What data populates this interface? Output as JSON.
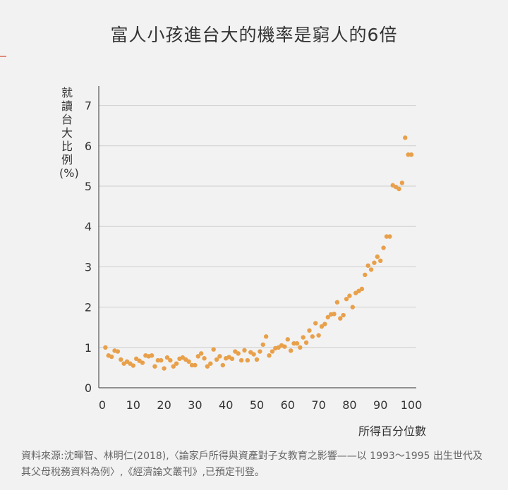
{
  "chart_data": {
    "type": "scatter",
    "title": "富人小孩進台大的機率是窮人的6倍",
    "xlabel": "所得百分位數",
    "ylabel": "就讀台大比例(%)",
    "xlim": [
      0,
      100
    ],
    "ylim": [
      0,
      7.5
    ],
    "xticks": [
      0,
      10,
      20,
      30,
      40,
      50,
      60,
      70,
      80,
      90,
      100
    ],
    "yticks": [
      0,
      1,
      2,
      3,
      4,
      5,
      6,
      7
    ],
    "grid": "horizontal",
    "color": "#e8a04a",
    "points": [
      [
        1,
        1.0
      ],
      [
        2,
        0.8
      ],
      [
        3,
        0.77
      ],
      [
        4,
        0.92
      ],
      [
        5,
        0.9
      ],
      [
        6,
        0.7
      ],
      [
        7,
        0.6
      ],
      [
        8,
        0.65
      ],
      [
        9,
        0.6
      ],
      [
        10,
        0.55
      ],
      [
        11,
        0.72
      ],
      [
        12,
        0.67
      ],
      [
        13,
        0.62
      ],
      [
        14,
        0.8
      ],
      [
        15,
        0.78
      ],
      [
        16,
        0.8
      ],
      [
        17,
        0.53
      ],
      [
        18,
        0.68
      ],
      [
        19,
        0.68
      ],
      [
        20,
        0.48
      ],
      [
        21,
        0.75
      ],
      [
        22,
        0.68
      ],
      [
        23,
        0.53
      ],
      [
        24,
        0.6
      ],
      [
        25,
        0.72
      ],
      [
        26,
        0.75
      ],
      [
        27,
        0.7
      ],
      [
        28,
        0.65
      ],
      [
        29,
        0.56
      ],
      [
        30,
        0.56
      ],
      [
        31,
        0.78
      ],
      [
        32,
        0.85
      ],
      [
        33,
        0.73
      ],
      [
        34,
        0.53
      ],
      [
        35,
        0.6
      ],
      [
        36,
        0.95
      ],
      [
        37,
        0.7
      ],
      [
        38,
        0.78
      ],
      [
        39,
        0.56
      ],
      [
        40,
        0.73
      ],
      [
        41,
        0.76
      ],
      [
        42,
        0.72
      ],
      [
        43,
        0.9
      ],
      [
        44,
        0.85
      ],
      [
        45,
        0.68
      ],
      [
        46,
        0.93
      ],
      [
        47,
        0.68
      ],
      [
        48,
        0.88
      ],
      [
        49,
        0.83
      ],
      [
        50,
        0.7
      ],
      [
        51,
        0.9
      ],
      [
        52,
        1.07
      ],
      [
        53,
        1.27
      ],
      [
        54,
        0.8
      ],
      [
        55,
        0.9
      ],
      [
        56,
        0.98
      ],
      [
        57,
        1.0
      ],
      [
        58,
        1.05
      ],
      [
        59,
        1.02
      ],
      [
        60,
        1.2
      ],
      [
        61,
        0.92
      ],
      [
        62,
        1.1
      ],
      [
        63,
        1.1
      ],
      [
        64,
        1.0
      ],
      [
        65,
        1.25
      ],
      [
        66,
        1.12
      ],
      [
        67,
        1.42
      ],
      [
        68,
        1.27
      ],
      [
        69,
        1.6
      ],
      [
        70,
        1.3
      ],
      [
        71,
        1.52
      ],
      [
        72,
        1.58
      ],
      [
        73,
        1.75
      ],
      [
        74,
        1.82
      ],
      [
        75,
        1.83
      ],
      [
        76,
        2.12
      ],
      [
        77,
        1.72
      ],
      [
        78,
        1.8
      ],
      [
        79,
        2.2
      ],
      [
        80,
        2.28
      ],
      [
        81,
        2.0
      ],
      [
        82,
        2.35
      ],
      [
        83,
        2.4
      ],
      [
        84,
        2.45
      ],
      [
        85,
        2.8
      ],
      [
        86,
        3.03
      ],
      [
        87,
        2.93
      ],
      [
        88,
        3.1
      ],
      [
        89,
        3.25
      ],
      [
        90,
        3.15
      ],
      [
        91,
        3.47
      ],
      [
        92,
        3.75
      ],
      [
        93,
        3.75
      ],
      [
        94,
        5.02
      ],
      [
        95,
        4.98
      ],
      [
        96,
        4.93
      ],
      [
        97,
        5.08
      ],
      [
        98,
        6.2
      ],
      [
        99,
        5.78
      ],
      [
        100,
        5.78
      ]
    ]
  },
  "source_note": "資料來源:沈暉智、林明仁(2018),〈論家戶所得與資產對子女教育之影響——以 1993～1995 出生世代及其父母稅務資料為例〉,《經濟論文叢刊》,已預定刊登。"
}
